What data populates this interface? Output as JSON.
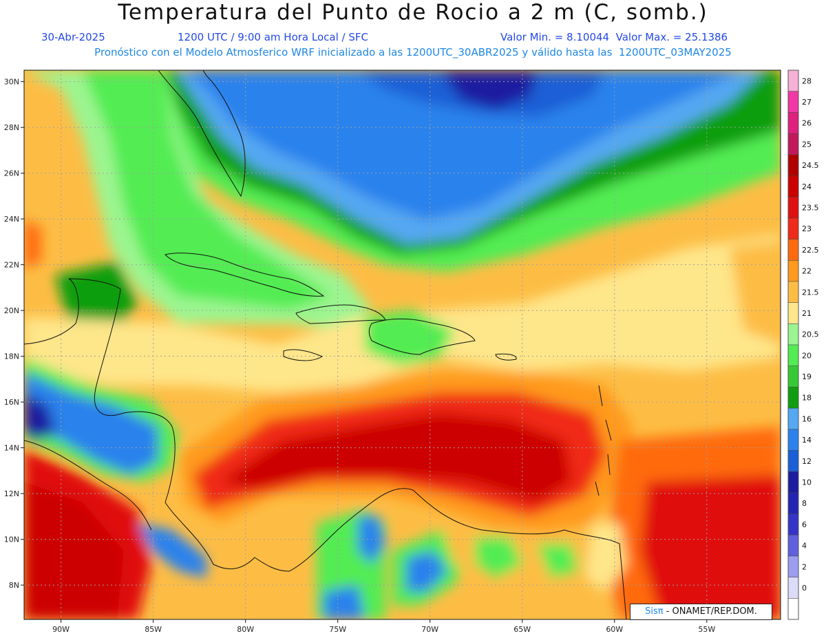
{
  "title": "Temperatura del Punto de Rocio a 2 m (C, somb.)",
  "subtitle": {
    "date": "30-Abr-2025",
    "time": "1200 UTC / 9:00 am Hora Local / SFC",
    "minmax": "Valor Min. = 8.10044  Valor Max. = 25.1386",
    "model": "Pronóstico con el Modelo Atmosferico WRF inicializado a las 1200UTC_30ABR2025 y válido hasta las  1200UTC_03MAY2025"
  },
  "map": {
    "lon_range": [
      -92,
      -51
    ],
    "lat_range": [
      6.5,
      30.5
    ],
    "lon_ticks": [
      "90W",
      "85W",
      "80W",
      "75W",
      "70W",
      "65W",
      "60W",
      "55W"
    ],
    "lat_ticks": [
      "30N",
      "28N",
      "26N",
      "24N",
      "22N",
      "20N",
      "18N",
      "16N",
      "14N",
      "12N",
      "10N",
      "8N"
    ],
    "grid": true
  },
  "colorbar": {
    "levels": [
      "28",
      "27",
      "26",
      "25",
      "24.5",
      "24",
      "23.5",
      "23",
      "22.5",
      "22",
      "21.5",
      "21",
      "20.5",
      "20",
      "19",
      "18",
      "16",
      "14",
      "12",
      "10",
      "8",
      "6",
      "4",
      "2",
      "0"
    ],
    "colors": [
      "#f7b0d6",
      "#f037a5",
      "#e0207e",
      "#c2185b",
      "#b00000",
      "#cc0000",
      "#e01010",
      "#f02a18",
      "#ff6a10",
      "#ff9a1c",
      "#fdbd45",
      "#fee68a",
      "#9cf590",
      "#53ec53",
      "#36c936",
      "#109e10",
      "#55a8f2",
      "#2b82ec",
      "#1a5fd6",
      "#1c1ca0",
      "#2424b4",
      "#3434c8",
      "#6060de",
      "#9c9cf0",
      "#dcdcfa",
      "#ffffff"
    ]
  },
  "credit": {
    "logo": "Sisπ",
    "text": " - ONAMET/REP.DOM."
  }
}
